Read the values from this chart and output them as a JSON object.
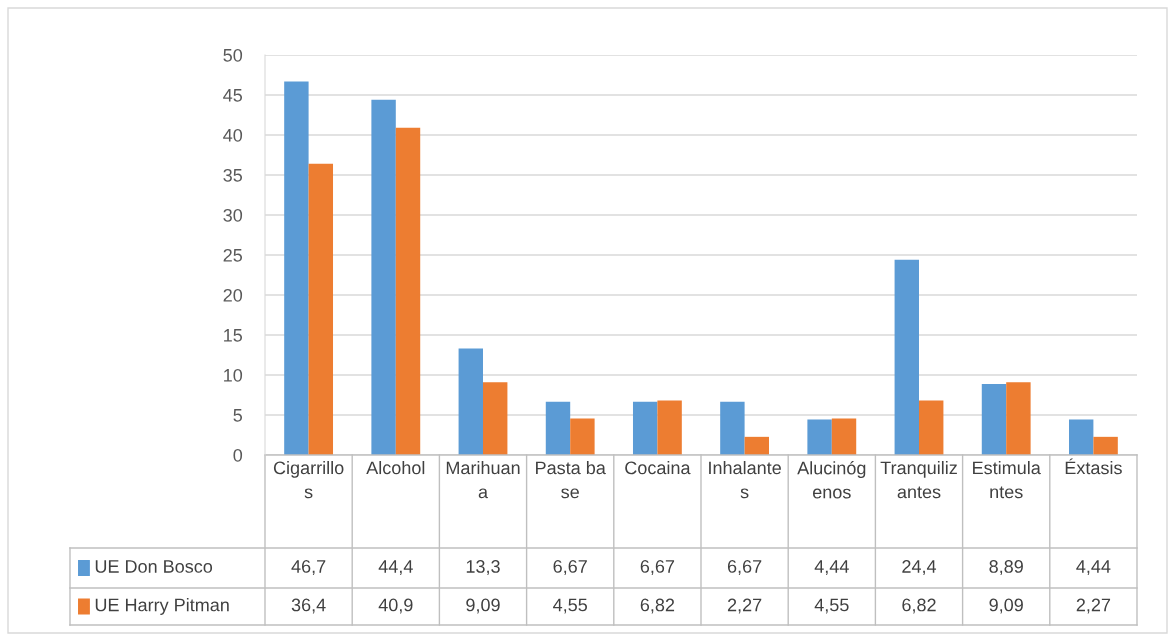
{
  "chart_data": {
    "type": "bar",
    "categories": [
      "Cigarrillos",
      "Alcohol",
      "Marihuana",
      "Pasta base",
      "Cocaina",
      "Inhalantes",
      "Alucinógenos",
      "Tranquilizantes",
      "Estimulantes",
      "Éxtasis"
    ],
    "series": [
      {
        "name": "UE Don Bosco",
        "color": "#5b9bd5",
        "values": [
          46.7,
          44.4,
          13.3,
          6.67,
          6.67,
          6.67,
          4.44,
          24.4,
          8.89,
          4.44
        ],
        "value_labels": [
          "46,7",
          "44,4",
          "13,3",
          "6,67",
          "6,67",
          "6,67",
          "4,44",
          "24,4",
          "8,89",
          "4,44"
        ]
      },
      {
        "name": "UE Harry Pitman",
        "color": "#ed7d31",
        "values": [
          36.4,
          40.9,
          9.09,
          4.55,
          6.82,
          2.27,
          4.55,
          6.82,
          9.09,
          2.27
        ],
        "value_labels": [
          "36,4",
          "40,9",
          "9,09",
          "4,55",
          "6,82",
          "2,27",
          "4,55",
          "6,82",
          "9,09",
          "2,27"
        ]
      }
    ],
    "ylim": [
      0,
      50
    ],
    "yticks": [
      0,
      5,
      10,
      15,
      20,
      25,
      30,
      35,
      40,
      45,
      50
    ],
    "grid": "y",
    "legend": "bottom"
  }
}
